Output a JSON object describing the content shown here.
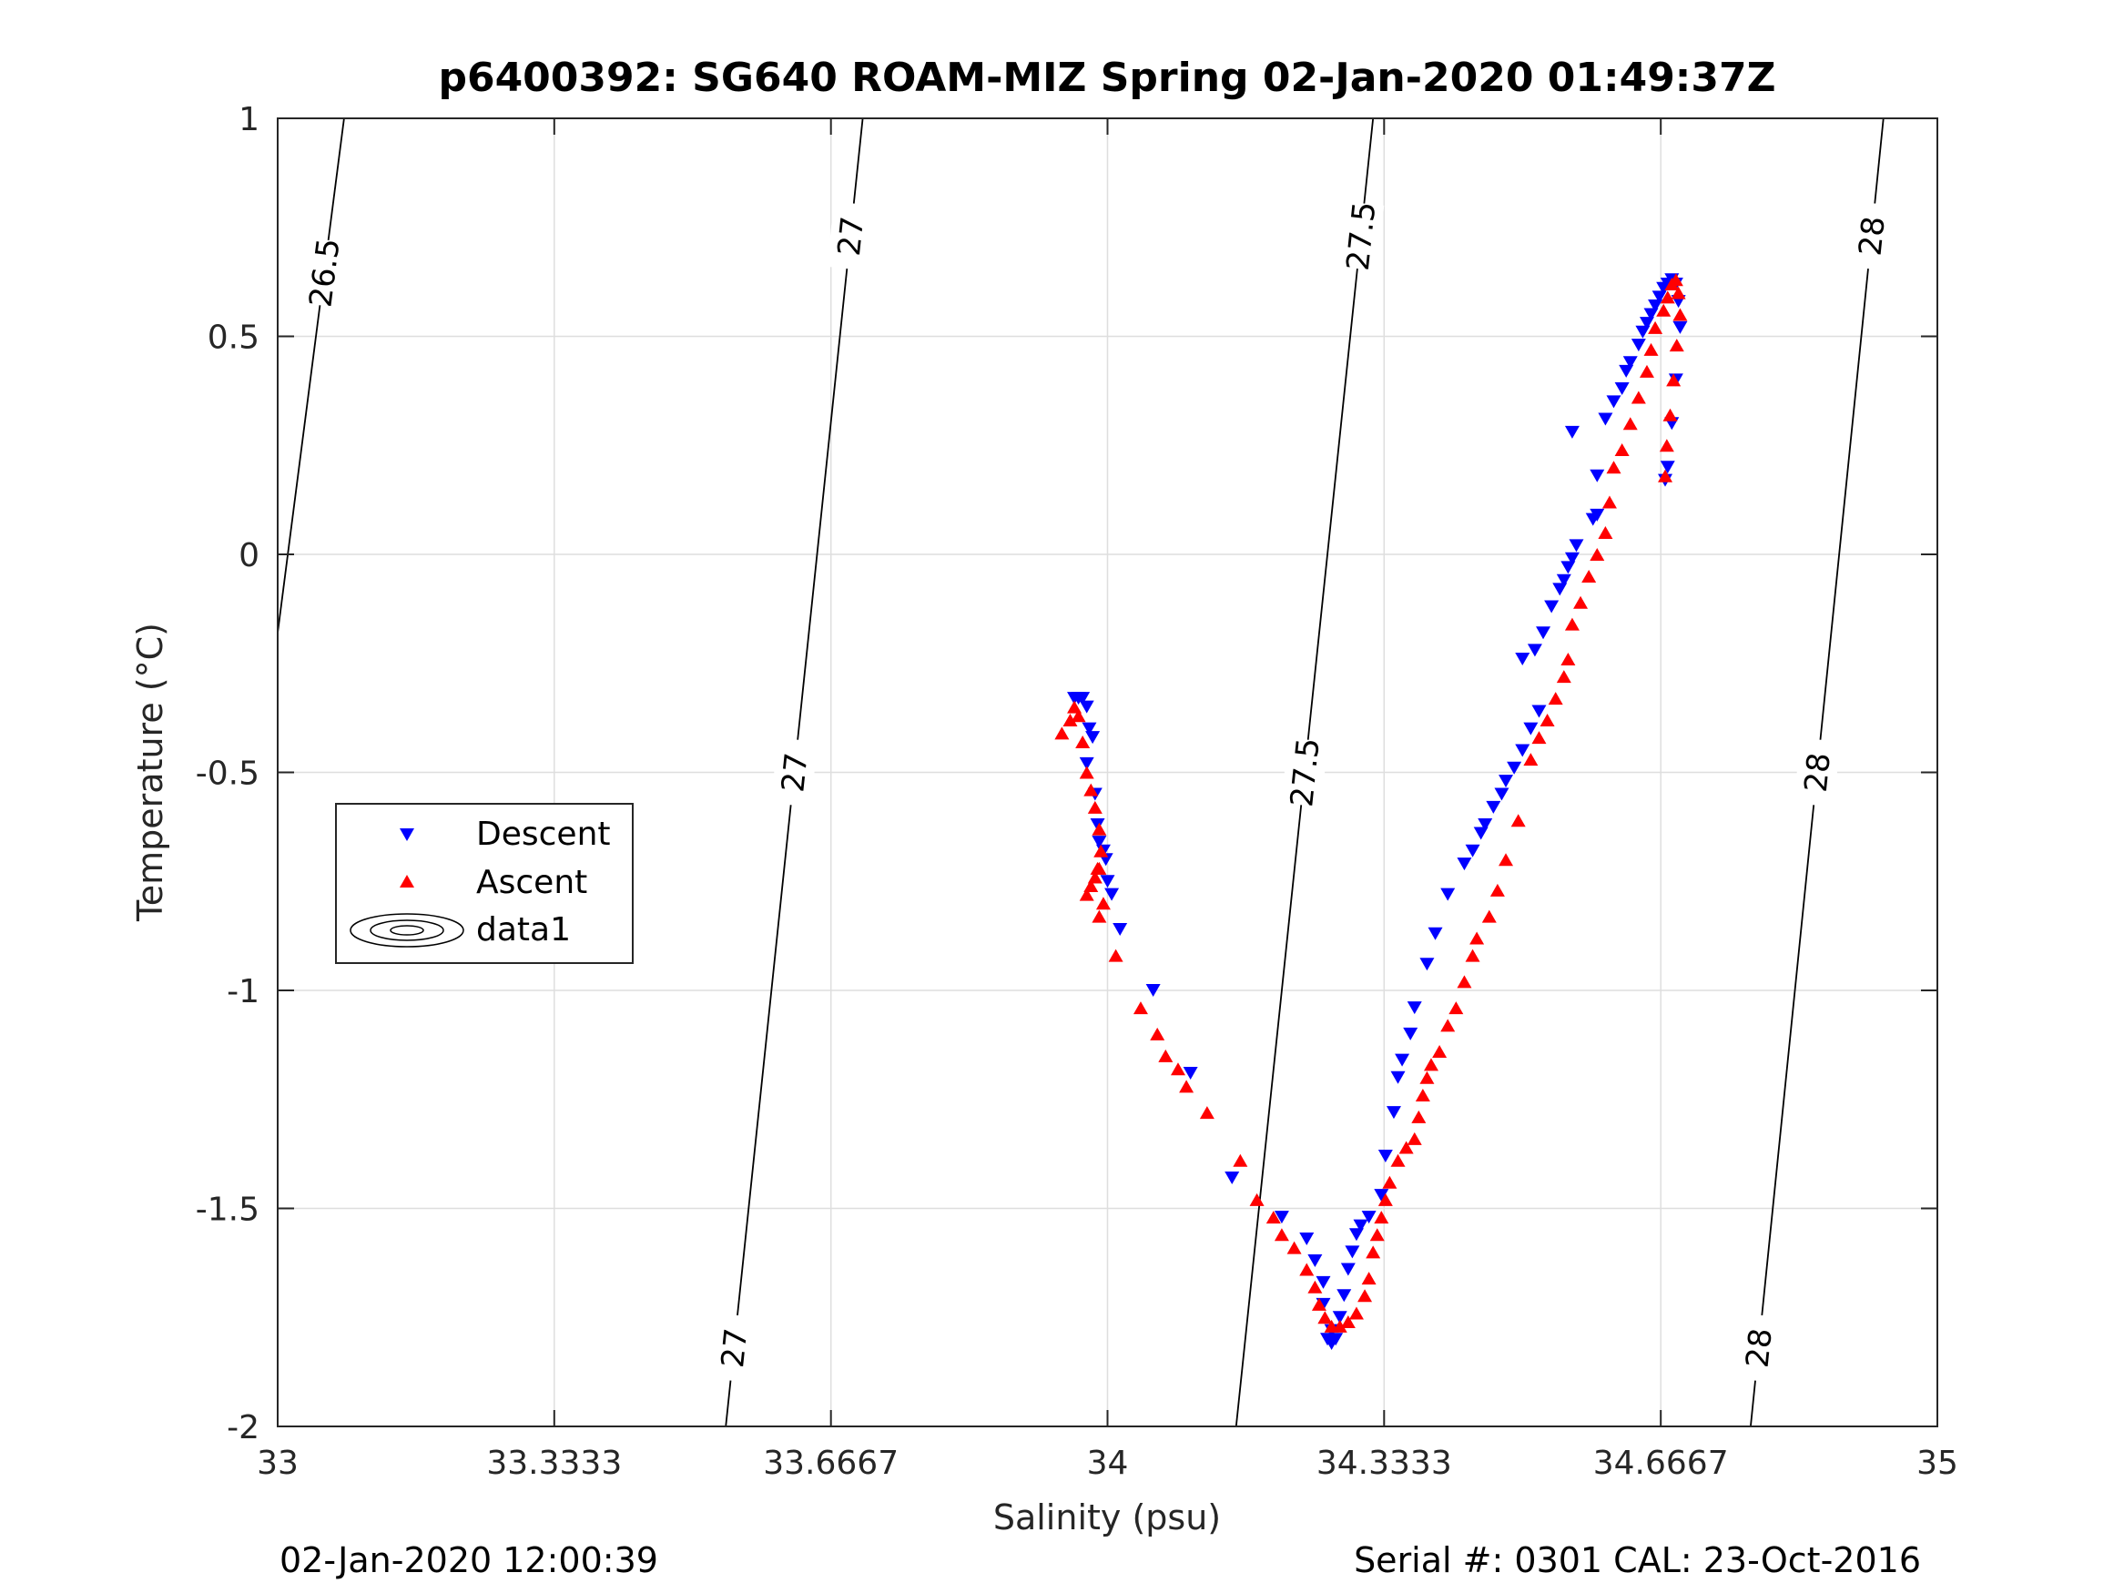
{
  "chart_data": {
    "type": "scatter",
    "title": "p6400392: SG640 ROAM-MIZ Spring 02-Jan-2020 01:49:37Z",
    "xlabel": "Salinity (psu)",
    "ylabel": "Temperature (°C)",
    "xlim": [
      33,
      35
    ],
    "ylim": [
      -2,
      1
    ],
    "x_ticks": [
      33,
      33.3333,
      33.6667,
      34,
      34.3333,
      34.6667,
      35
    ],
    "x_tick_labels": [
      "33",
      "33.3333",
      "33.6667",
      "34",
      "34.3333",
      "34.6667",
      "35"
    ],
    "y_ticks": [
      -2,
      -1.5,
      -1,
      -0.5,
      0,
      0.5,
      1
    ],
    "y_tick_labels": [
      "-2",
      "-1.5",
      "-1",
      "-0.5",
      "0",
      "0.5",
      "1"
    ],
    "grid": true,
    "legend_position": "left",
    "legend": [
      "Descent",
      "Ascent",
      "data1"
    ],
    "series": [
      {
        "name": "Descent",
        "color": "#0000ff",
        "marker": "triangle-down",
        "points": [
          [
            33.96,
            -0.33
          ],
          [
            33.965,
            -0.33
          ],
          [
            33.97,
            -0.33
          ],
          [
            33.975,
            -0.35
          ],
          [
            33.978,
            -0.4
          ],
          [
            33.982,
            -0.42
          ],
          [
            33.975,
            -0.48
          ],
          [
            33.985,
            -0.55
          ],
          [
            33.988,
            -0.62
          ],
          [
            33.99,
            -0.66
          ],
          [
            33.995,
            -0.68
          ],
          [
            33.998,
            -0.7
          ],
          [
            34.0,
            -0.75
          ],
          [
            34.005,
            -0.78
          ],
          [
            34.015,
            -0.86
          ],
          [
            34.055,
            -1.0
          ],
          [
            34.1,
            -1.19
          ],
          [
            34.15,
            -1.43
          ],
          [
            34.21,
            -1.52
          ],
          [
            34.24,
            -1.57
          ],
          [
            34.25,
            -1.62
          ],
          [
            34.26,
            -1.67
          ],
          [
            34.26,
            -1.72
          ],
          [
            34.27,
            -1.78
          ],
          [
            34.265,
            -1.8
          ],
          [
            34.27,
            -1.81
          ],
          [
            34.275,
            -1.8
          ],
          [
            34.28,
            -1.75
          ],
          [
            34.285,
            -1.7
          ],
          [
            34.29,
            -1.64
          ],
          [
            34.295,
            -1.6
          ],
          [
            34.3,
            -1.56
          ],
          [
            34.305,
            -1.54
          ],
          [
            34.315,
            -1.52
          ],
          [
            34.33,
            -1.47
          ],
          [
            34.335,
            -1.38
          ],
          [
            34.345,
            -1.28
          ],
          [
            34.35,
            -1.2
          ],
          [
            34.355,
            -1.16
          ],
          [
            34.365,
            -1.1
          ],
          [
            34.37,
            -1.04
          ],
          [
            34.385,
            -0.94
          ],
          [
            34.395,
            -0.87
          ],
          [
            34.41,
            -0.78
          ],
          [
            34.43,
            -0.71
          ],
          [
            34.44,
            -0.68
          ],
          [
            34.45,
            -0.64
          ],
          [
            34.455,
            -0.62
          ],
          [
            34.465,
            -0.58
          ],
          [
            34.475,
            -0.55
          ],
          [
            34.48,
            -0.52
          ],
          [
            34.49,
            -0.49
          ],
          [
            34.5,
            -0.45
          ],
          [
            34.51,
            -0.4
          ],
          [
            34.52,
            -0.36
          ],
          [
            34.5,
            -0.24
          ],
          [
            34.515,
            -0.22
          ],
          [
            34.525,
            -0.18
          ],
          [
            34.535,
            -0.12
          ],
          [
            34.545,
            -0.08
          ],
          [
            34.55,
            -0.06
          ],
          [
            34.555,
            -0.03
          ],
          [
            34.56,
            -0.01
          ],
          [
            34.565,
            0.02
          ],
          [
            34.585,
            0.08
          ],
          [
            34.59,
            0.09
          ],
          [
            34.59,
            0.18
          ],
          [
            34.56,
            0.28
          ],
          [
            34.6,
            0.31
          ],
          [
            34.61,
            0.35
          ],
          [
            34.62,
            0.38
          ],
          [
            34.625,
            0.42
          ],
          [
            34.63,
            0.44
          ],
          [
            34.64,
            0.48
          ],
          [
            34.645,
            0.51
          ],
          [
            34.65,
            0.53
          ],
          [
            34.655,
            0.55
          ],
          [
            34.66,
            0.57
          ],
          [
            34.665,
            0.59
          ],
          [
            34.67,
            0.61
          ],
          [
            34.675,
            0.62
          ],
          [
            34.68,
            0.63
          ],
          [
            34.685,
            0.62
          ],
          [
            34.688,
            0.58
          ],
          [
            34.69,
            0.52
          ],
          [
            34.685,
            0.4
          ],
          [
            34.68,
            0.3
          ],
          [
            34.675,
            0.2
          ],
          [
            34.672,
            0.17
          ]
        ]
      },
      {
        "name": "Ascent",
        "color": "#ff0000",
        "marker": "triangle-up",
        "points": [
          [
            33.945,
            -0.41
          ],
          [
            33.955,
            -0.38
          ],
          [
            33.96,
            -0.35
          ],
          [
            33.965,
            -0.37
          ],
          [
            33.97,
            -0.43
          ],
          [
            33.975,
            -0.5
          ],
          [
            33.98,
            -0.54
          ],
          [
            33.985,
            -0.58
          ],
          [
            33.99,
            -0.63
          ],
          [
            33.992,
            -0.68
          ],
          [
            33.99,
            -0.72
          ],
          [
            33.985,
            -0.74
          ],
          [
            33.98,
            -0.76
          ],
          [
            33.975,
            -0.78
          ],
          [
            33.988,
            -0.72
          ],
          [
            33.995,
            -0.8
          ],
          [
            33.99,
            -0.83
          ],
          [
            34.01,
            -0.92
          ],
          [
            34.04,
            -1.04
          ],
          [
            34.06,
            -1.1
          ],
          [
            34.07,
            -1.15
          ],
          [
            34.085,
            -1.18
          ],
          [
            34.095,
            -1.22
          ],
          [
            34.12,
            -1.28
          ],
          [
            34.16,
            -1.39
          ],
          [
            34.18,
            -1.48
          ],
          [
            34.2,
            -1.52
          ],
          [
            34.21,
            -1.56
          ],
          [
            34.225,
            -1.59
          ],
          [
            34.24,
            -1.64
          ],
          [
            34.25,
            -1.68
          ],
          [
            34.255,
            -1.72
          ],
          [
            34.262,
            -1.75
          ],
          [
            34.27,
            -1.77
          ],
          [
            34.28,
            -1.77
          ],
          [
            34.29,
            -1.76
          ],
          [
            34.3,
            -1.74
          ],
          [
            34.31,
            -1.7
          ],
          [
            34.315,
            -1.66
          ],
          [
            34.32,
            -1.6
          ],
          [
            34.325,
            -1.56
          ],
          [
            34.33,
            -1.52
          ],
          [
            34.335,
            -1.48
          ],
          [
            34.34,
            -1.44
          ],
          [
            34.35,
            -1.39
          ],
          [
            34.36,
            -1.36
          ],
          [
            34.37,
            -1.34
          ],
          [
            34.375,
            -1.29
          ],
          [
            34.38,
            -1.24
          ],
          [
            34.385,
            -1.2
          ],
          [
            34.39,
            -1.17
          ],
          [
            34.4,
            -1.14
          ],
          [
            34.41,
            -1.08
          ],
          [
            34.42,
            -1.04
          ],
          [
            34.43,
            -0.98
          ],
          [
            34.44,
            -0.92
          ],
          [
            34.445,
            -0.88
          ],
          [
            34.46,
            -0.83
          ],
          [
            34.47,
            -0.77
          ],
          [
            34.48,
            -0.7
          ],
          [
            34.495,
            -0.61
          ],
          [
            34.51,
            -0.47
          ],
          [
            34.52,
            -0.42
          ],
          [
            34.53,
            -0.38
          ],
          [
            34.54,
            -0.33
          ],
          [
            34.55,
            -0.28
          ],
          [
            34.555,
            -0.24
          ],
          [
            34.56,
            -0.16
          ],
          [
            34.57,
            -0.11
          ],
          [
            34.58,
            -0.05
          ],
          [
            34.59,
            0.0
          ],
          [
            34.6,
            0.05
          ],
          [
            34.605,
            0.12
          ],
          [
            34.61,
            0.2
          ],
          [
            34.62,
            0.24
          ],
          [
            34.63,
            0.3
          ],
          [
            34.64,
            0.36
          ],
          [
            34.65,
            0.42
          ],
          [
            34.655,
            0.47
          ],
          [
            34.66,
            0.52
          ],
          [
            34.67,
            0.56
          ],
          [
            34.675,
            0.59
          ],
          [
            34.68,
            0.62
          ],
          [
            34.685,
            0.63
          ],
          [
            34.688,
            0.6
          ],
          [
            34.69,
            0.55
          ],
          [
            34.686,
            0.48
          ],
          [
            34.682,
            0.4
          ],
          [
            34.678,
            0.32
          ],
          [
            34.674,
            0.25
          ],
          [
            34.672,
            0.18
          ]
        ]
      }
    ],
    "density_contours": [
      {
        "value": 26.5,
        "labels": [
          "26.5"
        ],
        "points": [
          [
            33.0,
            -0.18
          ],
          [
            33.08,
            1.0
          ]
        ]
      },
      {
        "value": 27,
        "labels": [
          "27",
          "27",
          "27"
        ],
        "points": [
          [
            33.54,
            -2.0
          ],
          [
            33.705,
            1.0
          ]
        ]
      },
      {
        "value": 27.5,
        "labels": [
          "27.5",
          "27.5"
        ],
        "points": [
          [
            34.155,
            -2.0
          ],
          [
            34.32,
            1.0
          ]
        ]
      },
      {
        "value": 28,
        "labels": [
          "28",
          "28",
          "28"
        ],
        "points": [
          [
            34.775,
            -2.0
          ],
          [
            34.935,
            1.0
          ]
        ]
      }
    ]
  },
  "footer": {
    "left": "02-Jan-2020 12:00:39",
    "right": "Serial #: 0301  CAL: 23-Oct-2016"
  }
}
